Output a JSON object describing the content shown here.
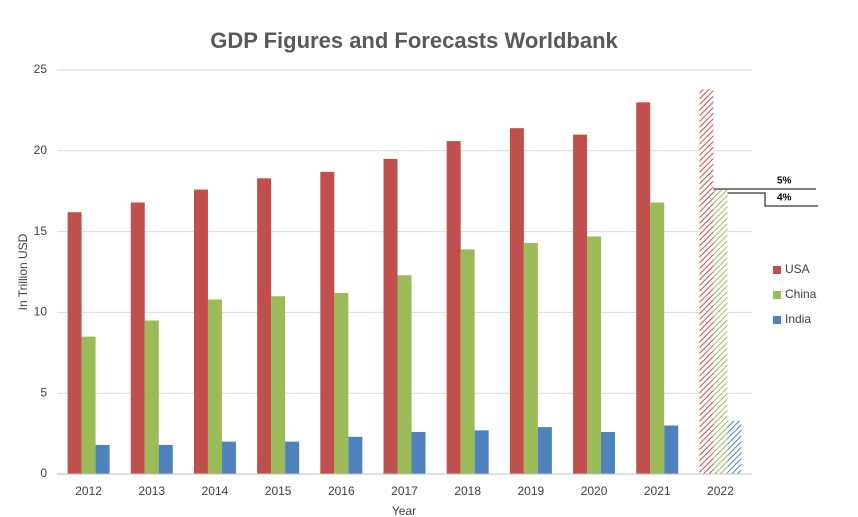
{
  "chart_data": {
    "type": "bar",
    "title": "GDP Figures and Forecasts Worldbank",
    "x_label": "Year",
    "y_label": "In Trillion USD",
    "categories": [
      "2012",
      "2013",
      "2014",
      "2015",
      "2016",
      "2017",
      "2018",
      "2019",
      "2020",
      "2021",
      "2022"
    ],
    "hatched": [
      false,
      false,
      false,
      false,
      false,
      false,
      false,
      false,
      false,
      false,
      true
    ],
    "series": [
      {
        "name": "USA",
        "color": "#c0504d",
        "values": [
          16.2,
          16.8,
          17.6,
          18.3,
          18.7,
          19.5,
          20.6,
          21.4,
          21.0,
          23.0,
          23.8
        ]
      },
      {
        "name": "China",
        "color": "#9bbb59",
        "values": [
          8.5,
          9.5,
          10.8,
          11.0,
          11.2,
          12.3,
          13.9,
          14.3,
          14.7,
          16.8,
          17.6
        ]
      },
      {
        "name": "India",
        "color": "#4f81bd",
        "values": [
          1.8,
          1.8,
          2.0,
          2.0,
          2.3,
          2.6,
          2.7,
          2.9,
          2.6,
          3.0,
          3.3
        ]
      }
    ],
    "annotations": [
      "5%",
      "4%"
    ],
    "ylim": [
      0,
      25
    ],
    "yticks": [
      0,
      5,
      10,
      15,
      20,
      25
    ],
    "grid": true,
    "legend": "right"
  }
}
